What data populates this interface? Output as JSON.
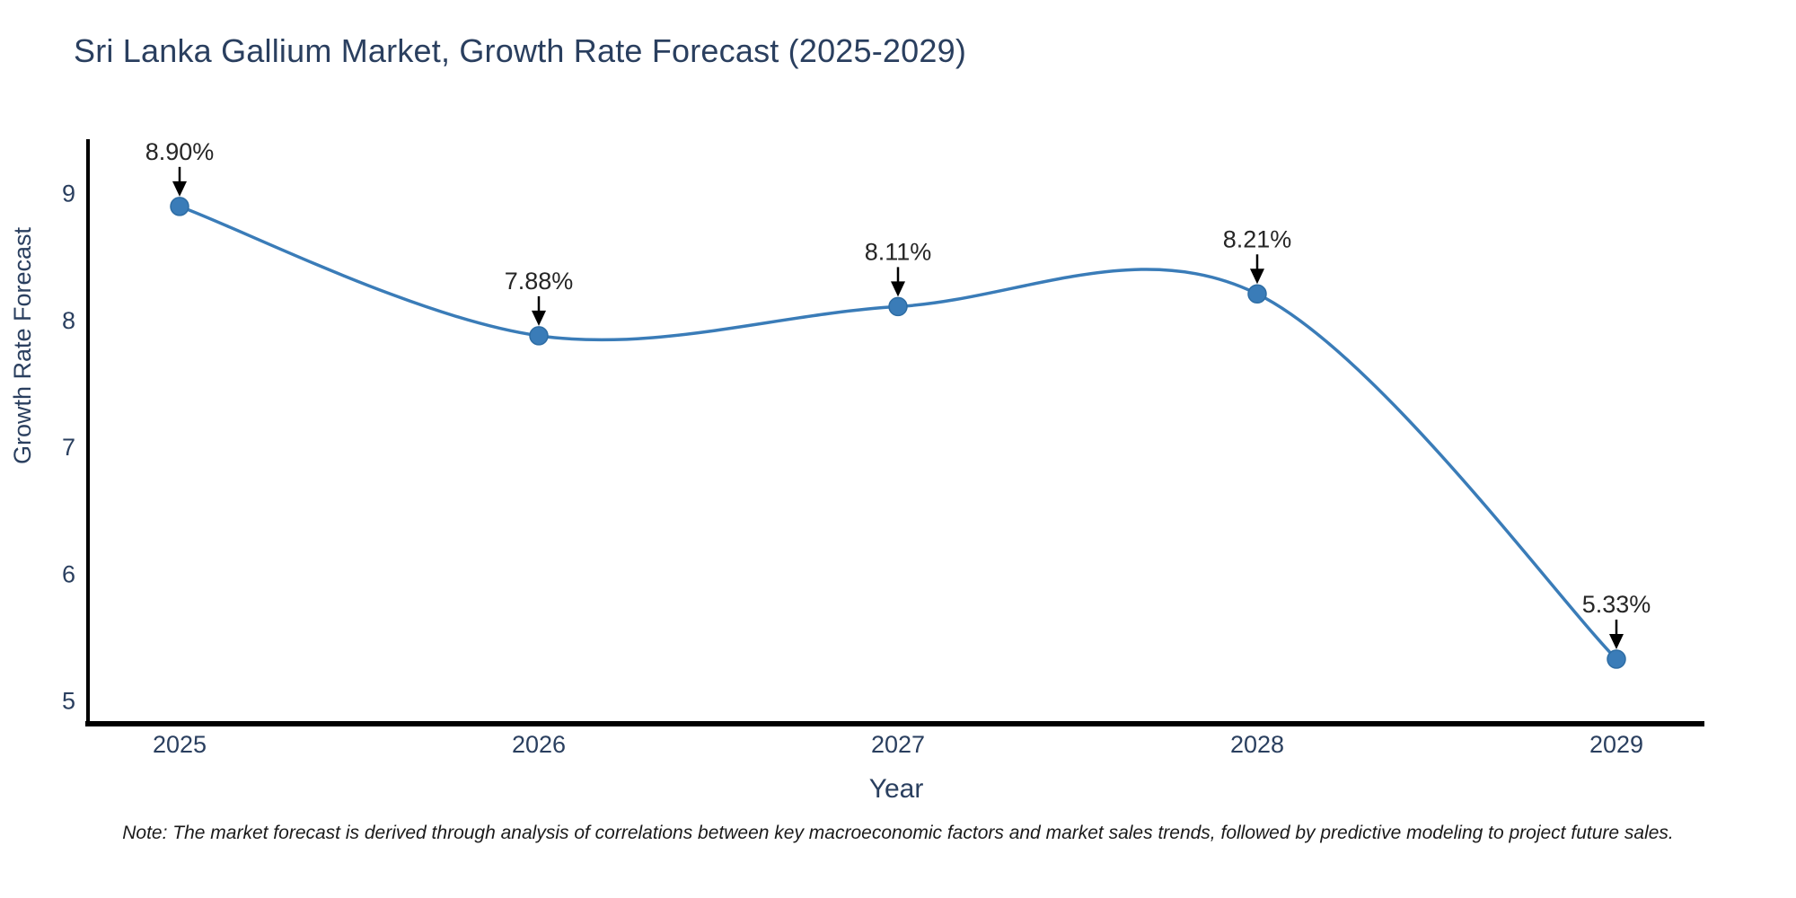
{
  "chart_data": {
    "type": "line",
    "title": "Sri Lanka Gallium Market, Growth Rate Forecast (2025-2029)",
    "xlabel": "Year",
    "ylabel": "Growth Rate Forecast",
    "x": [
      2025,
      2026,
      2027,
      2028,
      2029
    ],
    "y": [
      8.9,
      7.88,
      8.11,
      8.21,
      5.33
    ],
    "point_labels": [
      "8.90%",
      "7.88%",
      "8.11%",
      "8.21%",
      "5.33%"
    ],
    "x_tick_labels": [
      "2025",
      "2026",
      "2027",
      "2028",
      "2029"
    ],
    "y_tick_labels": [
      "5",
      "6",
      "7",
      "8",
      "9"
    ],
    "y_ticks": [
      5,
      6,
      7,
      8,
      9
    ],
    "ylim": [
      4.82,
      9.43
    ],
    "grid": false,
    "legend_position": "none",
    "line_shape": "spline",
    "colors": {
      "line": "#3a7cb8",
      "marker_fill": "#3a7cb8",
      "marker_edge": "#2e6da4",
      "axis_spine": "#000000",
      "tick_text": "#2a3f5f",
      "axis_title_text": "#2a3f5f",
      "annotation_text": "#262626",
      "annotation_arrow": "#000000",
      "background": "#ffffff"
    }
  },
  "note": "Note: The market forecast is derived through analysis of correlations between key macroeconomic factors and market sales trends, followed by predictive modeling to project future sales."
}
